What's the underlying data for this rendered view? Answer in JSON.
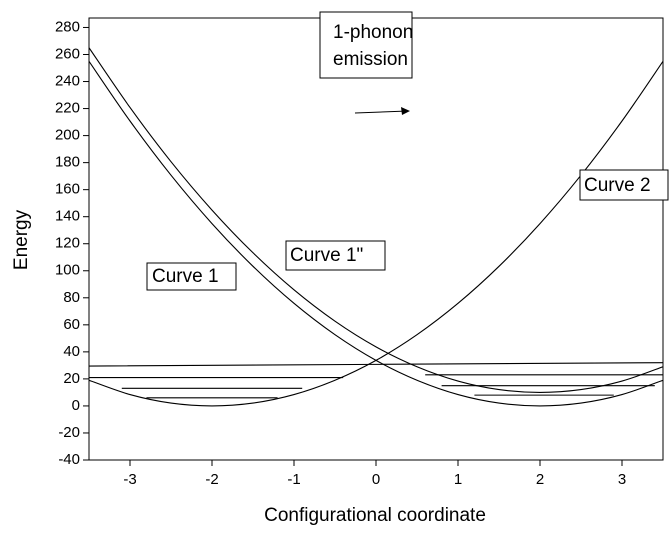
{
  "chart_data": {
    "type": "line",
    "xlabel": "Configurational coordinate",
    "ylabel": "Energy",
    "xlim": [
      -3.5,
      3.5
    ],
    "ylim": [
      -40,
      287
    ],
    "xticks": [
      -3,
      -2,
      -1,
      0,
      1,
      2,
      3
    ],
    "yticks": [
      -40,
      -20,
      0,
      20,
      40,
      60,
      80,
      100,
      120,
      140,
      160,
      180,
      200,
      220,
      240,
      260,
      280
    ],
    "color": "#000000",
    "series": [
      {
        "x": [
          -3.5,
          -3,
          -2.5,
          -2,
          -1.5,
          -1,
          -0.5,
          0,
          0.5,
          1,
          1.5,
          2,
          2.5,
          3,
          3.5
        ],
        "values": [
          255.0,
          210.8,
          170.7,
          134.9,
          103.3,
          75.9,
          52.7,
          33.7,
          19.0,
          8.4,
          2.1,
          0,
          2.1,
          8.4,
          19.0
        ]
      },
      {
        "x": [
          -3.5,
          -3,
          -2.5,
          -2,
          -1.5,
          -1,
          -0.5,
          0,
          0.5,
          1,
          1.5,
          2,
          2.5,
          3,
          3.5
        ],
        "values": [
          265.0,
          220.8,
          180.7,
          144.9,
          113.3,
          85.9,
          62.7,
          43.7,
          29.0,
          18.4,
          12.1,
          10,
          12.1,
          18.4,
          29.0
        ]
      },
      {
        "x": [
          -3.5,
          -3,
          -2.5,
          -2,
          -1.5,
          -1,
          -0.5,
          0,
          0.5,
          1,
          1.5,
          2,
          2.5,
          3,
          3.5
        ],
        "values": [
          19.0,
          8.4,
          2.1,
          0,
          2.1,
          8.4,
          19.0,
          33.7,
          52.7,
          75.9,
          103.3,
          134.9,
          170.7,
          210.8,
          255.0
        ]
      },
      {
        "x": [
          -3.5,
          3.5
        ],
        "values": [
          29.5,
          32
        ]
      },
      {
        "x": [
          -3.5,
          -0.4
        ],
        "values": [
          21,
          21
        ]
      },
      {
        "x": [
          -3.1,
          -0.9
        ],
        "values": [
          13,
          13
        ]
      },
      {
        "x": [
          -2.8,
          -1.2
        ],
        "values": [
          6,
          6
        ]
      },
      {
        "x": [
          0.6,
          3.5
        ],
        "values": [
          23,
          23
        ]
      },
      {
        "x": [
          0.8,
          3.4
        ],
        "values": [
          15,
          15
        ]
      },
      {
        "x": [
          1.2,
          2.9
        ],
        "values": [
          8,
          8
        ]
      }
    ],
    "annotations": [
      "1-phonon",
      "emission",
      "Curve 1",
      "Curve 1\"",
      "Curve 2"
    ]
  }
}
